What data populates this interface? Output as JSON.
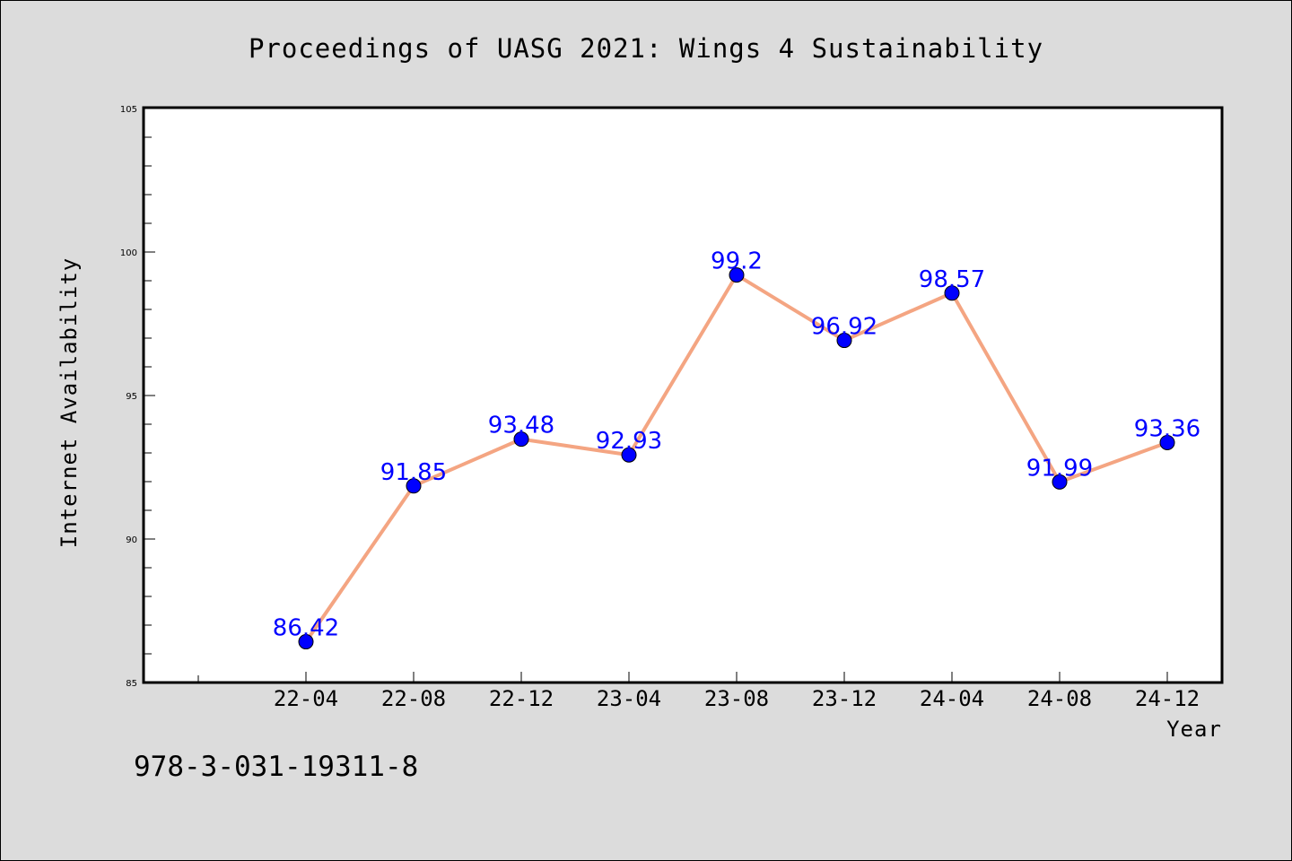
{
  "title": "Proceedings of UASG 2021: Wings 4 Sustainability",
  "footnote": "978-3-031-19311-8",
  "colors": {
    "background": "#dcdcdc",
    "plot_background": "#ffffff",
    "line": "#f4a582",
    "marker": "#0000ff",
    "label": "#0000ff",
    "frame": "#000000"
  },
  "chart_data": {
    "type": "line",
    "title": "Proceedings of UASG 2021: Wings 4 Sustainability",
    "xlabel": "Year",
    "ylabel": "Internet Availability",
    "categories": [
      "22-04",
      "22-08",
      "22-12",
      "23-04",
      "23-08",
      "23-12",
      "24-04",
      "24-08",
      "24-12"
    ],
    "values": [
      86.42,
      91.85,
      93.48,
      92.93,
      99.2,
      96.92,
      98.57,
      91.99,
      93.36
    ],
    "data_labels": [
      "86.42",
      "91.85",
      "93.48",
      "92.93",
      "99.2",
      "96.92",
      "98.57",
      "91.99",
      "93.36"
    ],
    "ylim": [
      85,
      105
    ],
    "yticks": [
      85,
      90,
      95,
      100,
      105
    ],
    "grid": false,
    "legend": "none"
  }
}
